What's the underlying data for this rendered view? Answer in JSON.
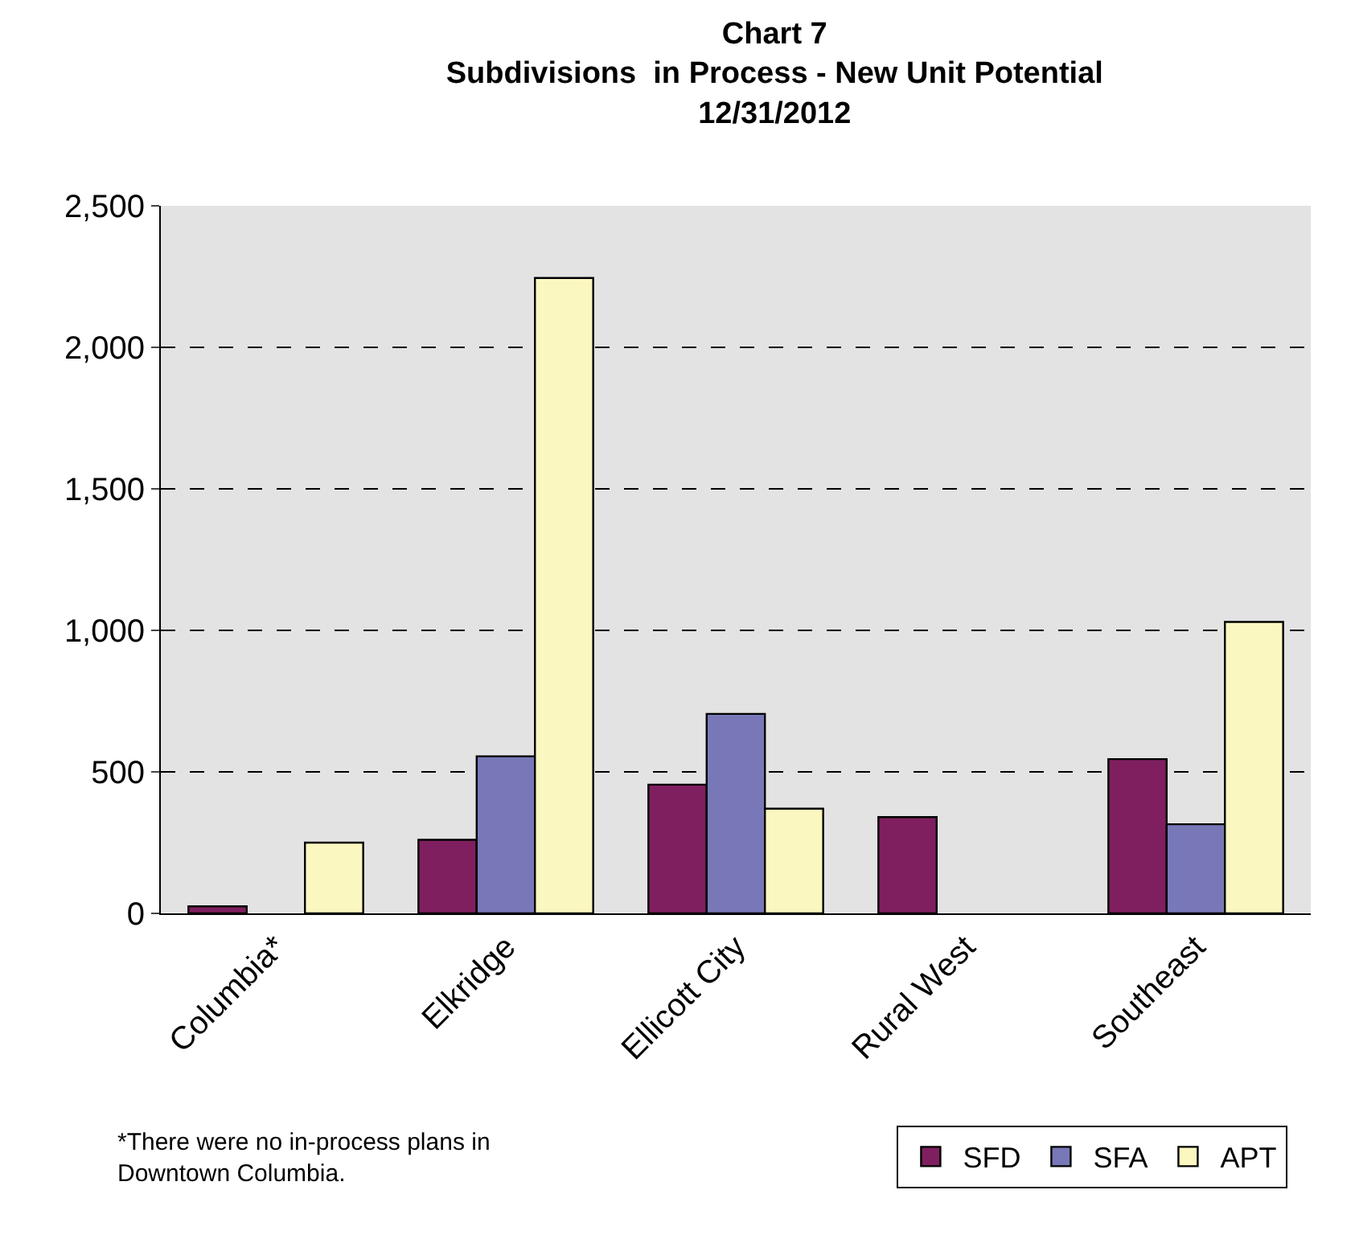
{
  "chart_data": {
    "type": "bar",
    "title": "Chart 7\nSubdivisions  in Process - New Unit Potential\n12/31/2012",
    "categories": [
      "Columbia*",
      "Elkridge",
      "Ellicott City",
      "Rural West",
      "Southeast"
    ],
    "series": [
      {
        "name": "SFD",
        "color": "#7f1f5f",
        "values": [
          25,
          260,
          455,
          340,
          545
        ]
      },
      {
        "name": "SFA",
        "color": "#7878b8",
        "values": [
          null,
          555,
          705,
          null,
          315
        ]
      },
      {
        "name": "APT",
        "color": "#fbf7c0",
        "values": [
          250,
          2245,
          370,
          null,
          1030
        ]
      }
    ],
    "ylim": [
      0,
      2500
    ],
    "yticks": [
      {
        "value": 0,
        "label": "0"
      },
      {
        "value": 500,
        "label": "500"
      },
      {
        "value": 1000,
        "label": "1,000"
      },
      {
        "value": 1500,
        "label": "1,500"
      },
      {
        "value": 2000,
        "label": "2,000"
      },
      {
        "value": 2500,
        "label": "2,500"
      }
    ],
    "grid": "y",
    "legend": "bottom right",
    "annotations": [
      "*There were no in-process plans in\nDowntown Columbia."
    ]
  }
}
